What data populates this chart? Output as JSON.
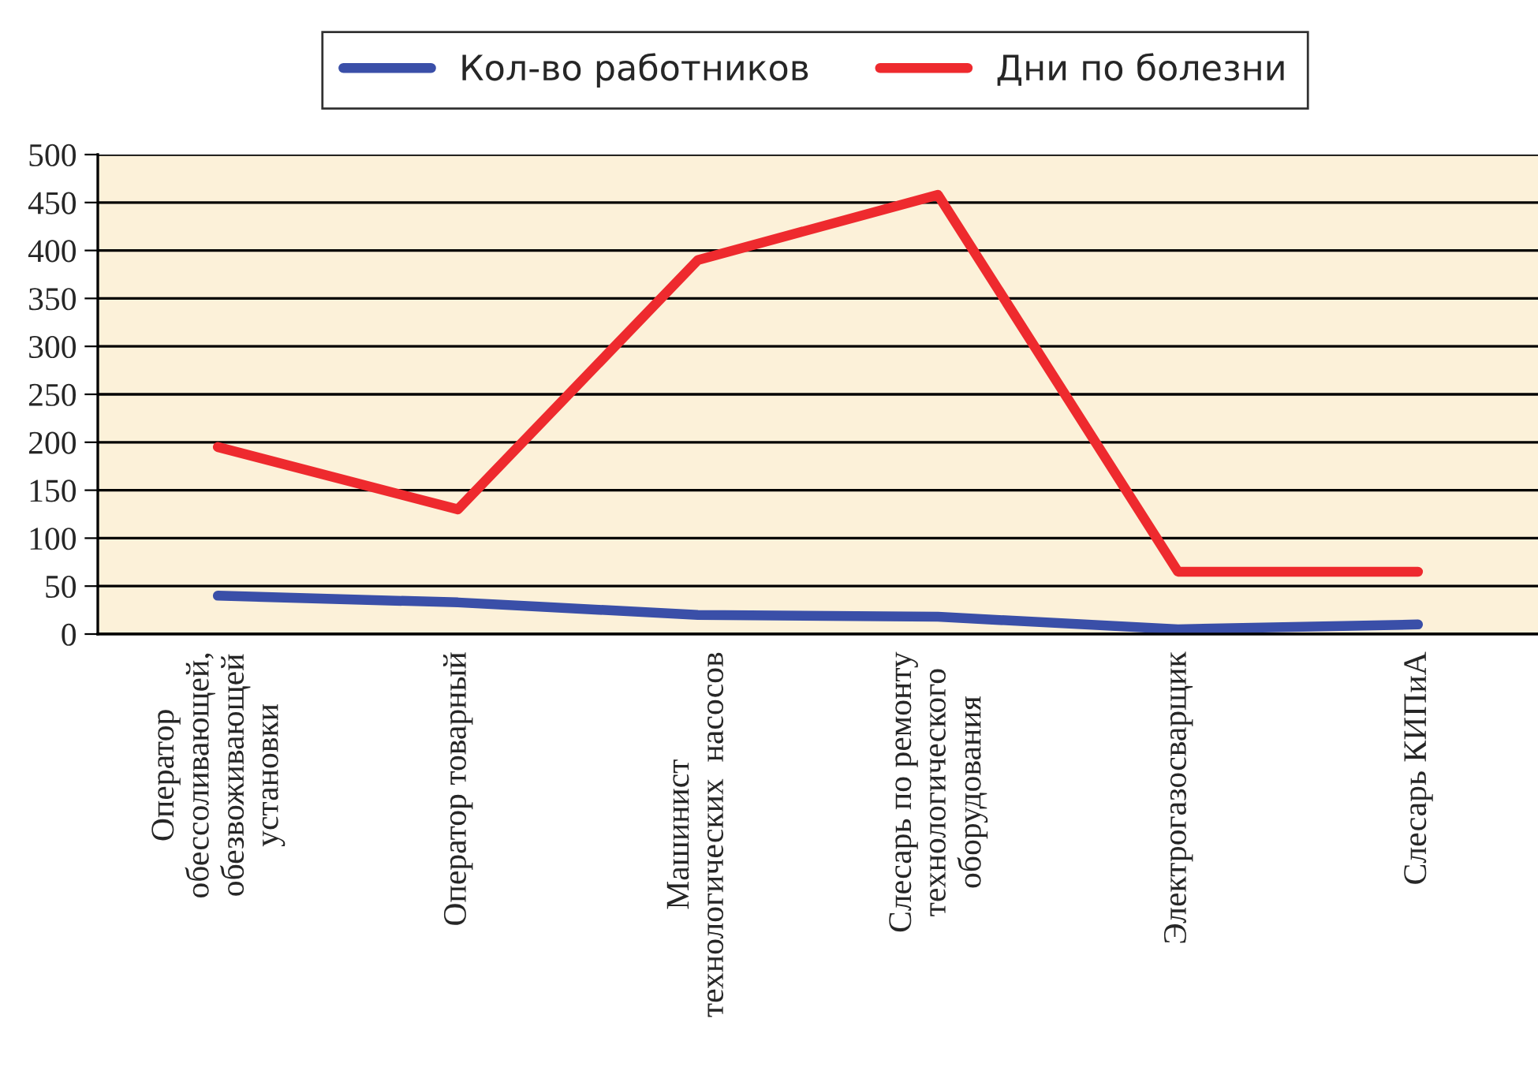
{
  "chart_data": {
    "type": "line",
    "categories": [
      "Оператор\nобессоливающей,\nобезвоживающей\nустановки",
      "Оператор товарный",
      "Машинист\nтехнологических  насосов",
      "Слесарь по ремонту\nтехнологического\nоборудования",
      "Электрогазосварщик",
      "Слесарь КИПиА"
    ],
    "series": [
      {
        "name": "Кол-во работников",
        "color": "#3a4fa8",
        "values": [
          40,
          33,
          20,
          18,
          5,
          10
        ]
      },
      {
        "name": "Дни по болезни",
        "color": "#ee2a2e",
        "values": [
          195,
          130,
          390,
          458,
          65,
          65
        ]
      }
    ],
    "ylim": [
      0,
      500
    ],
    "yticks": [
      0,
      50,
      100,
      150,
      200,
      250,
      300,
      350,
      400,
      450,
      500
    ],
    "grid": "y",
    "legend": "top",
    "marker": "none",
    "line_style": "solid"
  }
}
